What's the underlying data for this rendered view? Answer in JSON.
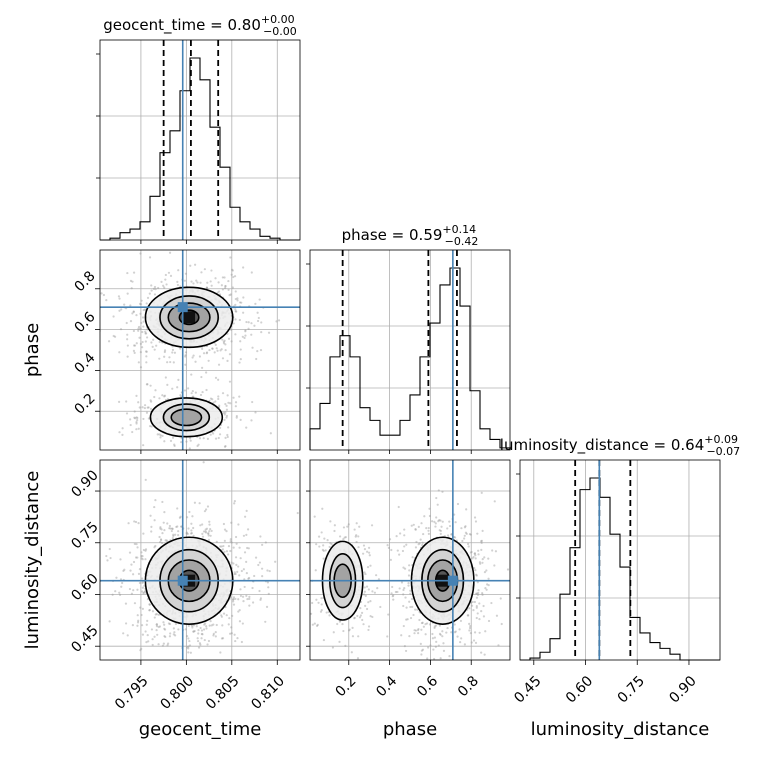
{
  "chart_data": {
    "type": "corner",
    "parameters": [
      {
        "name": "geocent_time",
        "label": "geocent_time",
        "truth": 0.7996,
        "range": [
          0.7905,
          0.8125
        ],
        "ticks": [
          0.795,
          0.8,
          0.805,
          0.81
        ],
        "tick_labels": [
          "0.795",
          "0.800",
          "0.805",
          "0.810"
        ],
        "title": "geocent_time = 0.80",
        "title_plus": "+0.00",
        "title_minus": "−0.00",
        "quantiles": [
          0.7975,
          0.8005,
          0.8035
        ],
        "hist_bin_edges": [
          0.7905,
          0.7916,
          0.7927,
          0.7938,
          0.7949,
          0.796,
          0.7971,
          0.7982,
          0.7993,
          0.8004,
          0.8015,
          0.8026,
          0.8037,
          0.8048,
          0.8059,
          0.807,
          0.8081,
          0.8092,
          0.8103,
          0.8114,
          0.8125
        ],
        "hist_counts": [
          0.0,
          0.01,
          0.04,
          0.06,
          0.1,
          0.24,
          0.48,
          0.6,
          0.82,
          1.0,
          0.88,
          0.62,
          0.4,
          0.18,
          0.1,
          0.06,
          0.02,
          0.01,
          0.0,
          0.0
        ]
      },
      {
        "name": "phase",
        "label": "phase",
        "truth": 0.71,
        "range": [
          0.01,
          0.99
        ],
        "ticks": [
          0.2,
          0.4,
          0.6,
          0.8
        ],
        "tick_labels": [
          "0.2",
          "0.4",
          "0.6",
          "0.8"
        ],
        "title": "phase = 0.59",
        "title_plus": "+0.14",
        "title_minus": "−0.42",
        "quantiles": [
          0.17,
          0.59,
          0.73
        ],
        "hist_bin_edges": [
          0.01,
          0.059,
          0.108,
          0.157,
          0.206,
          0.255,
          0.304,
          0.353,
          0.402,
          0.451,
          0.5,
          0.549,
          0.598,
          0.647,
          0.696,
          0.745,
          0.794,
          0.843,
          0.892,
          0.941,
          0.99
        ],
        "hist_counts": [
          0.1,
          0.22,
          0.44,
          0.54,
          0.44,
          0.2,
          0.14,
          0.07,
          0.07,
          0.14,
          0.26,
          0.44,
          0.6,
          0.78,
          0.86,
          0.68,
          0.28,
          0.1,
          0.05,
          0.01
        ]
      },
      {
        "name": "luminosity_distance",
        "label": "luminosity_distance",
        "truth": 0.64,
        "range": [
          0.41,
          0.99
        ],
        "ticks": [
          0.45,
          0.6,
          0.75,
          0.9
        ],
        "tick_labels": [
          "0.45",
          "0.60",
          "0.75",
          "0.90"
        ],
        "title": "luminosity_distance = 0.64",
        "title_plus": "+0.09",
        "title_minus": "−0.07",
        "quantiles": [
          0.57,
          0.64,
          0.73
        ],
        "hist_bin_edges": [
          0.41,
          0.439,
          0.468,
          0.497,
          0.526,
          0.555,
          0.584,
          0.613,
          0.642,
          0.671,
          0.7,
          0.729,
          0.758,
          0.787,
          0.816,
          0.845,
          0.874,
          0.903,
          0.932,
          0.961,
          0.99
        ],
        "hist_counts": [
          0.0,
          0.01,
          0.04,
          0.11,
          0.34,
          0.58,
          0.88,
          0.94,
          0.84,
          0.65,
          0.48,
          0.22,
          0.14,
          0.09,
          0.06,
          0.03,
          0.0,
          0.0,
          0.0,
          0.0
        ]
      }
    ],
    "joint": {
      "phase_vs_geocent_time": {
        "modes": [
          {
            "x": 0.8003,
            "y": 0.66,
            "sx": 0.0022,
            "sy": 0.07,
            "weight": 0.72
          },
          {
            "x": 0.8,
            "y": 0.17,
            "sx": 0.002,
            "sy": 0.05,
            "weight": 0.28
          }
        ]
      },
      "luminosity_distance_vs_geocent_time": {
        "modes": [
          {
            "x": 0.8003,
            "y": 0.64,
            "sx": 0.0022,
            "sy": 0.06,
            "weight": 1.0
          }
        ]
      },
      "luminosity_distance_vs_phase": {
        "modes": [
          {
            "x": 0.66,
            "y": 0.64,
            "sx": 0.07,
            "sy": 0.06,
            "weight": 0.72
          },
          {
            "x": 0.17,
            "y": 0.64,
            "sx": 0.05,
            "sy": 0.06,
            "weight": 0.28
          }
        ]
      }
    },
    "truth_color": "#4682b4",
    "contour_color": "#000000",
    "histogram_color": "#000000",
    "quantile_line_style": "dashed",
    "grid": true
  }
}
